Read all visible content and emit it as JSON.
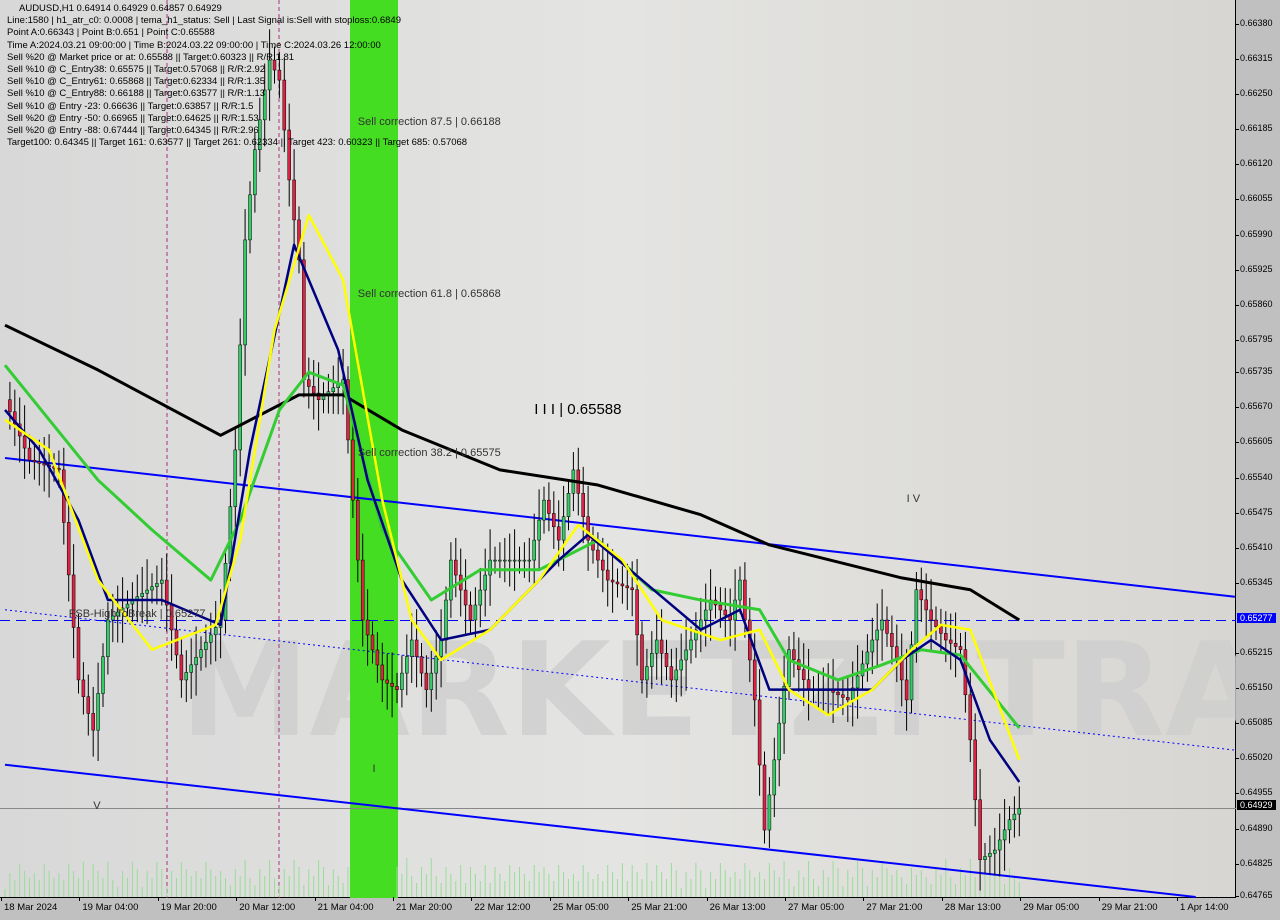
{
  "header": {
    "title": "AUDUSD,H1  0.64914 0.64929 0.64857 0.64929",
    "lines": [
      "Line:1580 | h1_atr_c0: 0.0008 | tema_h1_status: Sell | Last Signal is:Sell with stoploss:0.6849",
      "Point A:0.66343 | Point B:0.651 | Point C:0.65588",
      "Time A:2024.03.21 09:00:00 | Time B:2024.03.22 09:00:00 | Time C:2024.03.26 12:00:00",
      "Sell %20 @ Market price or at: 0.65588 || Target:0.60323 || R/R:1.81",
      "Sell %10 @ C_Entry38: 0.65575 || Target:0.57068 || R/R:2.92",
      "Sell %10 @ C_Entry61: 0.65868 || Target:0.62334 || R/R:1.35",
      "Sell %10 @ C_Entry88: 0.66188 || Target:0.63577 || R/R:1.13",
      "Sell %10 @ Entry -23: 0.66636 || Target:0.63857 || R/R:1.5",
      "Sell %20 @ Entry -50: 0.66965 || Target:0.64625 || R/R:1.53",
      "Sell %20 @ Entry -88: 0.67444 || Target:0.64345 || R/R:2.96",
      "Target100: 0.64345 || Target 161: 0.63577 || Target 261: 0.62334 || Target 423: 0.60323 || Target 685: 0.57068"
    ]
  },
  "watermark": "MARKETZI TRADE",
  "chart_data": {
    "type": "candlestick",
    "symbol": "AUDUSD",
    "timeframe": "H1",
    "ylim": [
      0.64765,
      0.6638
    ],
    "y_ticks": [
      "0.66380",
      "0.66315",
      "0.66250",
      "0.66185",
      "0.66120",
      "0.66055",
      "0.65990",
      "0.65925",
      "0.65860",
      "0.65795",
      "0.65735",
      "0.65670",
      "0.65605",
      "0.65540",
      "0.65475",
      "0.65410",
      "0.65345",
      "0.65215",
      "0.65150",
      "0.65085",
      "0.65020",
      "0.64955",
      "0.64890",
      "0.64825",
      "0.64765"
    ],
    "x_ticks": [
      "18 Mar 2024",
      "19 Mar 04:00",
      "19 Mar 20:00",
      "20 Mar 12:00",
      "21 Mar 04:00",
      "21 Mar 20:00",
      "22 Mar 12:00",
      "25 Mar 05:00",
      "25 Mar 21:00",
      "26 Mar 13:00",
      "27 Mar 05:00",
      "27 Mar 21:00",
      "28 Mar 13:00",
      "29 Mar 05:00",
      "29 Mar 21:00",
      "1 Apr 14:00"
    ],
    "current_price": "0.64929",
    "level_price": "0.65277",
    "price_path": [
      [
        0,
        0.65686
      ],
      [
        5,
        0.65574
      ],
      [
        11,
        0.65556
      ],
      [
        15,
        0.65167
      ],
      [
        18,
        0.65074
      ],
      [
        21,
        0.65278
      ],
      [
        26,
        0.65315
      ],
      [
        32,
        0.65352
      ],
      [
        36,
        0.65167
      ],
      [
        40,
        0.65223
      ],
      [
        44,
        0.65278
      ],
      [
        47,
        0.65593
      ],
      [
        49,
        0.65982
      ],
      [
        51,
        0.66149
      ],
      [
        54,
        0.66315
      ],
      [
        56,
        0.66278
      ],
      [
        58,
        0.66093
      ],
      [
        60,
        0.65945
      ],
      [
        61,
        0.65723
      ],
      [
        64,
        0.65686
      ],
      [
        69,
        0.65723
      ],
      [
        71,
        0.655
      ],
      [
        73,
        0.65278
      ],
      [
        77,
        0.65167
      ],
      [
        80,
        0.65149
      ],
      [
        83,
        0.65241
      ],
      [
        86,
        0.65149
      ],
      [
        89,
        0.65241
      ],
      [
        91,
        0.65389
      ],
      [
        95,
        0.65278
      ],
      [
        99,
        0.65389
      ],
      [
        103,
        0.65389
      ],
      [
        107,
        0.65389
      ],
      [
        110,
        0.655
      ],
      [
        113,
        0.65426
      ],
      [
        116,
        0.65556
      ],
      [
        119,
        0.65426
      ],
      [
        123,
        0.65352
      ],
      [
        128,
        0.65334
      ],
      [
        130,
        0.65167
      ],
      [
        133,
        0.65241
      ],
      [
        136,
        0.65167
      ],
      [
        140,
        0.65241
      ],
      [
        144,
        0.65315
      ],
      [
        148,
        0.65278
      ],
      [
        150,
        0.65352
      ],
      [
        153,
        0.6513
      ],
      [
        155,
        0.64889
      ],
      [
        157,
        0.65019
      ],
      [
        160,
        0.65223
      ],
      [
        164,
        0.65149
      ],
      [
        168,
        0.65149
      ],
      [
        172,
        0.6513
      ],
      [
        177,
        0.65241
      ],
      [
        179,
        0.65278
      ],
      [
        182,
        0.65204
      ],
      [
        184,
        0.6513
      ],
      [
        186,
        0.65334
      ],
      [
        189,
        0.65278
      ],
      [
        192,
        0.65241
      ],
      [
        195,
        0.65223
      ],
      [
        197,
        0.65056
      ],
      [
        199,
        0.64834
      ],
      [
        202,
        0.64852
      ],
      [
        205,
        0.64908
      ],
      [
        207,
        0.64929
      ]
    ],
    "series": [
      {
        "color": "#000000",
        "values": [
          [
            0,
            0.65824
          ],
          [
            19,
            0.65741
          ],
          [
            44,
            0.6562
          ],
          [
            60,
            0.65695
          ],
          [
            69,
            0.65695
          ],
          [
            81,
            0.6563
          ],
          [
            101,
            0.65556
          ],
          [
            121,
            0.65528
          ],
          [
            142,
            0.65473
          ],
          [
            156,
            0.65417
          ],
          [
            183,
            0.65356
          ],
          [
            197,
            0.65334
          ],
          [
            207,
            0.65278
          ]
        ]
      },
      {
        "color": "#33cc33",
        "values": [
          [
            0,
            0.6575
          ],
          [
            9,
            0.65649
          ],
          [
            19,
            0.65537
          ],
          [
            30,
            0.65445
          ],
          [
            42,
            0.65352
          ],
          [
            48,
            0.65463
          ],
          [
            56,
            0.65667
          ],
          [
            62,
            0.65737
          ],
          [
            69,
            0.65713
          ],
          [
            77,
            0.65445
          ],
          [
            87,
            0.65315
          ],
          [
            97,
            0.65371
          ],
          [
            109,
            0.65371
          ],
          [
            121,
            0.65426
          ],
          [
            132,
            0.65334
          ],
          [
            142,
            0.65315
          ],
          [
            154,
            0.65297
          ],
          [
            160,
            0.65204
          ],
          [
            170,
            0.65167
          ],
          [
            179,
            0.65195
          ],
          [
            187,
            0.65223
          ],
          [
            195,
            0.65213
          ],
          [
            207,
            0.65078
          ]
        ]
      },
      {
        "color": "#000080",
        "values": [
          [
            0,
            0.65667
          ],
          [
            7,
            0.65593
          ],
          [
            15,
            0.65463
          ],
          [
            21,
            0.65315
          ],
          [
            32,
            0.65315
          ],
          [
            44,
            0.65269
          ],
          [
            50,
            0.65593
          ],
          [
            59,
            0.65973
          ],
          [
            68,
            0.65778
          ],
          [
            74,
            0.65537
          ],
          [
            81,
            0.65352
          ],
          [
            89,
            0.65241
          ],
          [
            99,
            0.6526
          ],
          [
            113,
            0.65389
          ],
          [
            119,
            0.65436
          ],
          [
            130,
            0.65352
          ],
          [
            142,
            0.6526
          ],
          [
            150,
            0.65297
          ],
          [
            156,
            0.65149
          ],
          [
            166,
            0.65149
          ],
          [
            177,
            0.65149
          ],
          [
            183,
            0.65204
          ],
          [
            189,
            0.65241
          ],
          [
            195,
            0.65204
          ],
          [
            201,
            0.65056
          ],
          [
            207,
            0.64978
          ]
        ]
      },
      {
        "color": "#ffff00",
        "values": [
          [
            0,
            0.65649
          ],
          [
            9,
            0.65593
          ],
          [
            19,
            0.65352
          ],
          [
            30,
            0.65223
          ],
          [
            43,
            0.65269
          ],
          [
            48,
            0.65426
          ],
          [
            55,
            0.65815
          ],
          [
            62,
            0.66028
          ],
          [
            69,
            0.65908
          ],
          [
            77,
            0.655
          ],
          [
            83,
            0.65278
          ],
          [
            89,
            0.65204
          ],
          [
            99,
            0.6526
          ],
          [
            109,
            0.65352
          ],
          [
            117,
            0.65454
          ],
          [
            126,
            0.65389
          ],
          [
            134,
            0.65278
          ],
          [
            146,
            0.65241
          ],
          [
            154,
            0.6526
          ],
          [
            160,
            0.65149
          ],
          [
            168,
            0.65102
          ],
          [
            177,
            0.65149
          ],
          [
            185,
            0.65223
          ],
          [
            191,
            0.65269
          ],
          [
            197,
            0.6526
          ],
          [
            207,
            0.65019
          ]
        ]
      }
    ],
    "channel": {
      "upper": [
        [
          0,
          0.65578
        ],
        [
          251,
          0.65321
        ]
      ],
      "lower": [
        [
          0,
          0.6501
        ],
        [
          243,
          0.64765
        ]
      ],
      "middle_dotted": [
        [
          0,
          0.65297
        ],
        [
          251,
          0.65037
        ]
      ]
    },
    "annotations": [
      {
        "text": "Sell correction 87.5 | 0.66188",
        "price": 0.66188,
        "bar": 72
      },
      {
        "text": "Sell correction 61.8 | 0.65868",
        "price": 0.65868,
        "bar": 72
      },
      {
        "text": "Sell correction 38.2 | 0.65575",
        "price": 0.65575,
        "bar": 72
      },
      {
        "text": "FSB-HighToBreak | 0.65277",
        "price": 0.65277,
        "bar": 13
      },
      {
        "text": "I I I | 0.65588",
        "price": 0.6566,
        "bar": 108
      },
      {
        "text": "I V",
        "price": 0.6549,
        "bar": 184
      },
      {
        "text": "I",
        "price": 0.6499,
        "bar": 75
      },
      {
        "text": "V",
        "price": 0.6492,
        "bar": 18
      }
    ],
    "sell_zone_color": "#44dd22",
    "level_color": "#0000ff"
  }
}
